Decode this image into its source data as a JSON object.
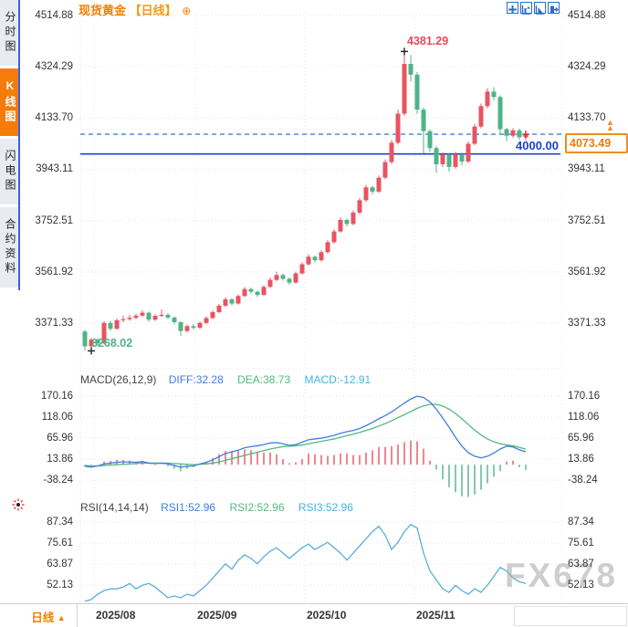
{
  "sidebar": {
    "tabs": [
      {
        "label": "分时图",
        "active": false
      },
      {
        "label": "K线图",
        "active": true
      },
      {
        "label": "闪电图",
        "active": false
      },
      {
        "label": "合约资料",
        "active": false
      }
    ]
  },
  "header": {
    "symbol": "现货黄金",
    "period_tag": "【日线】",
    "add_icon": "⊕"
  },
  "annotations": {
    "high": "4381.29",
    "low": "3268.02",
    "hline": "4000.00",
    "last_price": "4073.49",
    "tag_arrow": "▲▲"
  },
  "price_axis": [
    "4514.88",
    "4324.29",
    "4133.70",
    "3943.11",
    "3752.51",
    "3561.92",
    "3371.33"
  ],
  "macd_axis": [
    "170.16",
    "118.06",
    "65.96",
    "13.86",
    "-38.24"
  ],
  "rsi_axis": [
    "87.34",
    "75.61",
    "63.87",
    "52.13"
  ],
  "indicators": {
    "macd_title": "MACD(26,12,9)",
    "diff_label": "DIFF:32.28",
    "dea_label": "DEA:38.73",
    "macd_label": "MACD:-12.91",
    "rsi_title": "RSI(14,14,14)",
    "rsi1_label": "RSI1:52.96",
    "rsi2_label": "RSI2:52.96",
    "rsi3_label": "RSI3:52.96"
  },
  "footer": {
    "period_label": "日线",
    "period_arrow": "▲",
    "dates": [
      "2025/08",
      "2025/09",
      "2025/10",
      "2025/11"
    ]
  },
  "watermark": "FX678",
  "colors": {
    "up": "#e85461",
    "down": "#4eb487",
    "accent": "#f08000",
    "blue_line": "#2240cc",
    "dash_line": "#3a86d4",
    "diff": "#3f7de0",
    "dea": "#54b87d",
    "macd3": "#45b5dc",
    "rsi_line": "#58aed6",
    "grid": "#e4e4e8",
    "axis_text": "#333333",
    "tick": "#999999",
    "marker": "#222222"
  },
  "chart_data": {
    "type": "candlestick",
    "title": "现货黄金 日线",
    "x_labels": [
      "2025/08",
      "2025/09",
      "2025/10",
      "2025/11"
    ],
    "price_axis_ticks": [
      4514.88,
      4324.29,
      4133.7,
      3943.11,
      3752.51,
      3561.92,
      3371.33
    ],
    "high_point": {
      "index": 50,
      "value": 4381.29
    },
    "low_point": {
      "index": 1,
      "value": 3268.02
    },
    "support_line": 4000.0,
    "last_price": 4073.49,
    "candles": [
      [
        3340,
        3346,
        3269,
        3285
      ],
      [
        3285,
        3316,
        3268.02,
        3310
      ],
      [
        3310,
        3315,
        3288,
        3296
      ],
      [
        3296,
        3378,
        3294,
        3372
      ],
      [
        3372,
        3380,
        3342,
        3350
      ],
      [
        3350,
        3388,
        3348,
        3382
      ],
      [
        3382,
        3398,
        3375,
        3386
      ],
      [
        3386,
        3402,
        3380,
        3391
      ],
      [
        3391,
        3406,
        3386,
        3399
      ],
      [
        3399,
        3419,
        3394,
        3410
      ],
      [
        3410,
        3414,
        3377,
        3384
      ],
      [
        3384,
        3404,
        3380,
        3398
      ],
      [
        3398,
        3422,
        3394,
        3402
      ],
      [
        3402,
        3408,
        3386,
        3392
      ],
      [
        3392,
        3396,
        3368,
        3375
      ],
      [
        3375,
        3378,
        3324,
        3342
      ],
      [
        3342,
        3366,
        3336,
        3360
      ],
      [
        3360,
        3368,
        3347,
        3354
      ],
      [
        3354,
        3377,
        3350,
        3372
      ],
      [
        3372,
        3396,
        3367,
        3390
      ],
      [
        3390,
        3418,
        3386,
        3412
      ],
      [
        3412,
        3442,
        3408,
        3436
      ],
      [
        3436,
        3467,
        3431,
        3460
      ],
      [
        3460,
        3464,
        3437,
        3444
      ],
      [
        3444,
        3478,
        3440,
        3472
      ],
      [
        3472,
        3505,
        3468,
        3498
      ],
      [
        3498,
        3503,
        3481,
        3488
      ],
      [
        3488,
        3492,
        3469,
        3476
      ],
      [
        3476,
        3512,
        3472,
        3506
      ],
      [
        3506,
        3540,
        3502,
        3532
      ],
      [
        3532,
        3562,
        3527,
        3550
      ],
      [
        3550,
        3555,
        3529,
        3536
      ],
      [
        3536,
        3541,
        3514,
        3522
      ],
      [
        3522,
        3563,
        3518,
        3556
      ],
      [
        3556,
        3597,
        3551,
        3590
      ],
      [
        3590,
        3626,
        3585,
        3618
      ],
      [
        3618,
        3623,
        3597,
        3605
      ],
      [
        3605,
        3642,
        3600,
        3635
      ],
      [
        3635,
        3680,
        3630,
        3672
      ],
      [
        3672,
        3720,
        3667,
        3712
      ],
      [
        3712,
        3764,
        3707,
        3755
      ],
      [
        3755,
        3760,
        3731,
        3740
      ],
      [
        3740,
        3790,
        3735,
        3782
      ],
      [
        3782,
        3836,
        3776,
        3828
      ],
      [
        3828,
        3885,
        3822,
        3876
      ],
      [
        3876,
        3882,
        3850,
        3860
      ],
      [
        3860,
        3920,
        3855,
        3912
      ],
      [
        3912,
        3980,
        3906,
        3970
      ],
      [
        3970,
        4052,
        3963,
        4042
      ],
      [
        4042,
        4165,
        4035,
        4150
      ],
      [
        4150,
        4381.29,
        4142,
        4335
      ],
      [
        4335,
        4368,
        4270,
        4295
      ],
      [
        4295,
        4305,
        4150,
        4165
      ],
      [
        4165,
        4172,
        4002,
        4085
      ],
      [
        4085,
        4092,
        4008,
        4022
      ],
      [
        4022,
        4030,
        3930,
        3962
      ],
      [
        3962,
        4006,
        3952,
        3998
      ],
      [
        3998,
        4004,
        3934,
        3952
      ],
      [
        3952,
        4008,
        3946,
        3999
      ],
      [
        3999,
        4005,
        3958,
        3972
      ],
      [
        3972,
        4046,
        3966,
        4038
      ],
      [
        4038,
        4112,
        4032,
        4102
      ],
      [
        4102,
        4188,
        4096,
        4178
      ],
      [
        4178,
        4245,
        4170,
        4232
      ],
      [
        4232,
        4248,
        4200,
        4212
      ],
      [
        4212,
        4218,
        4074,
        4092
      ],
      [
        4092,
        4098,
        4048,
        4068
      ],
      [
        4068,
        4096,
        4060,
        4088
      ],
      [
        4088,
        4094,
        4052,
        4062
      ],
      [
        4062,
        4085,
        4050,
        4073.49
      ]
    ],
    "macd": {
      "axis": [
        170.16,
        118.06,
        65.96,
        13.86,
        -38.24
      ],
      "diff": [
        -4,
        -6,
        -3,
        2,
        4,
        6,
        7,
        7,
        6,
        8,
        4,
        3,
        4,
        2,
        -2,
        -6,
        -4,
        -3,
        2,
        6,
        12,
        20,
        28,
        32,
        36,
        42,
        45,
        47,
        50,
        54,
        55,
        52,
        48,
        50,
        56,
        62,
        64,
        66,
        69,
        73,
        78,
        82,
        85,
        90,
        97,
        105,
        114,
        122,
        131,
        142,
        153,
        163,
        170,
        167,
        156,
        138,
        116,
        93,
        68,
        46,
        30,
        21,
        17,
        21,
        29,
        39,
        46,
        44,
        37,
        32.28
      ],
      "dea": [
        -2,
        -3,
        -3,
        -2,
        -1,
        0,
        1,
        2,
        3,
        4,
        4,
        4,
        4,
        4,
        3,
        2,
        1,
        0,
        1,
        2,
        4,
        7,
        11,
        15,
        19,
        23,
        27,
        31,
        35,
        39,
        42,
        45,
        46,
        47,
        49,
        52,
        55,
        58,
        61,
        64,
        68,
        72,
        76,
        80,
        85,
        90,
        96,
        102,
        109,
        117,
        124,
        132,
        140,
        146,
        150,
        150,
        146,
        138,
        127,
        114,
        100,
        86,
        74,
        64,
        57,
        52,
        49,
        47,
        43,
        38.73
      ],
      "hist": [
        -4,
        -6,
        0,
        8,
        10,
        12,
        12,
        10,
        6,
        8,
        0,
        -2,
        0,
        -4,
        -10,
        -16,
        -10,
        -6,
        2,
        8,
        16,
        26,
        34,
        34,
        34,
        38,
        36,
        32,
        30,
        30,
        26,
        14,
        4,
        6,
        14,
        28,
        26,
        24,
        22,
        24,
        28,
        28,
        24,
        24,
        30,
        36,
        44,
        44,
        46,
        50,
        56,
        60,
        58,
        40,
        10,
        -12,
        -36,
        -56,
        -68,
        -78,
        -80,
        -74,
        -62,
        -46,
        -30,
        -16,
        8,
        10,
        -6,
        -12.91
      ]
    },
    "rsi": {
      "axis": [
        87.34,
        75.61,
        63.87,
        52.13
      ],
      "values": [
        43,
        44,
        47,
        49,
        50,
        50,
        51,
        53,
        50,
        52,
        53,
        51,
        48,
        45,
        46,
        45,
        47,
        46,
        49,
        52,
        56,
        60,
        64,
        61,
        66,
        69,
        67,
        64,
        68,
        71,
        73,
        70,
        67,
        70,
        73,
        75,
        72,
        74,
        76,
        73,
        70,
        66,
        70,
        74,
        78,
        82,
        85,
        80,
        72,
        76,
        82,
        86,
        84,
        70,
        60,
        55,
        50,
        48,
        52,
        49,
        47,
        50,
        48,
        52,
        57,
        62,
        60,
        56,
        54,
        52.96
      ]
    }
  }
}
